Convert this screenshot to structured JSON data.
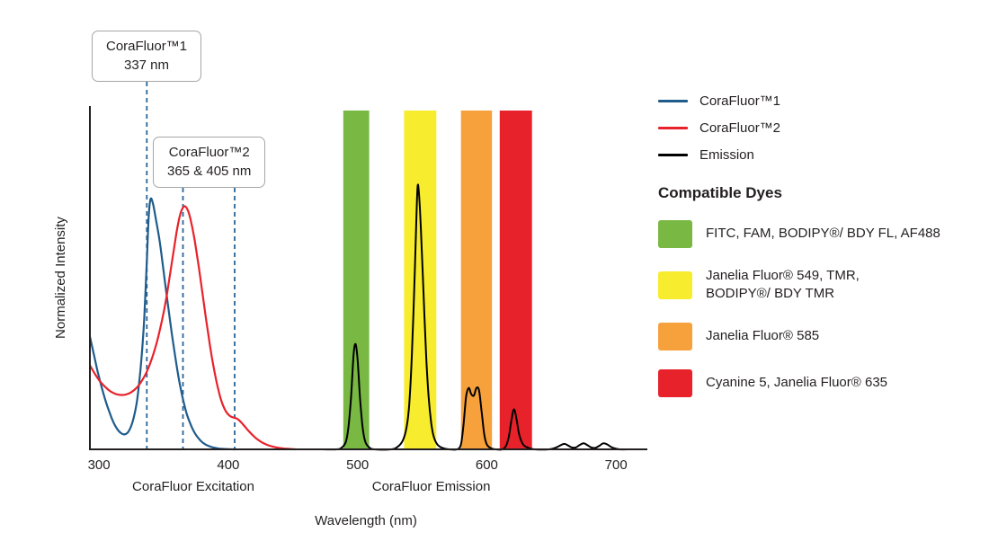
{
  "chart_data": {
    "type": "line",
    "xlabel": "Wavelength (nm)",
    "ylabel": "Normalized Intensity",
    "xlim": [
      293,
      720
    ],
    "ylim": [
      0,
      1.37
    ],
    "xticks": [
      300,
      400,
      500,
      600,
      700
    ],
    "grid": false,
    "legend_position": "right",
    "dashed_line_color": "#2a6496",
    "axis_captions": [
      {
        "label": "CoraFluor Excitation",
        "x_nm": 373
      },
      {
        "label": "CoraFluor Emission",
        "x_nm": 557
      }
    ],
    "annotations": [
      {
        "title": "CoraFluor™1",
        "value": "337 nm",
        "anchors_nm": [
          337
        ]
      },
      {
        "title": "CoraFluor™2",
        "value": "365 & 405 nm",
        "anchors_nm": [
          365,
          405
        ]
      }
    ],
    "bands": [
      {
        "id": "band-fitc",
        "x1": 489,
        "x2": 509,
        "color": "#78b843"
      },
      {
        "id": "band-jf549",
        "x1": 536,
        "x2": 561,
        "color": "#f8ec2e"
      },
      {
        "id": "band-jf585",
        "x1": 580,
        "x2": 604,
        "color": "#f6a13c"
      },
      {
        "id": "band-cy5",
        "x1": 610,
        "x2": 635,
        "color": "#e8222b"
      }
    ],
    "series": [
      {
        "id": "corafluor1-excitation",
        "name": "CoraFluor™1",
        "color": "#1f5c8c",
        "points": [
          [
            293,
            0.45
          ],
          [
            296,
            0.38
          ],
          [
            299,
            0.31
          ],
          [
            302,
            0.25
          ],
          [
            305,
            0.195
          ],
          [
            308,
            0.15
          ],
          [
            311,
            0.11
          ],
          [
            314,
            0.082
          ],
          [
            317,
            0.065
          ],
          [
            320,
            0.06
          ],
          [
            323,
            0.072
          ],
          [
            326,
            0.11
          ],
          [
            329,
            0.18
          ],
          [
            331,
            0.26
          ],
          [
            333,
            0.37
          ],
          [
            335,
            0.52
          ],
          [
            337,
            0.75
          ],
          [
            338.5,
            0.93
          ],
          [
            340,
            1.0
          ],
          [
            342,
            0.975
          ],
          [
            344,
            0.92
          ],
          [
            347,
            0.83
          ],
          [
            350,
            0.71
          ],
          [
            353,
            0.59
          ],
          [
            356,
            0.475
          ],
          [
            359,
            0.37
          ],
          [
            362,
            0.275
          ],
          [
            365,
            0.2
          ],
          [
            368,
            0.14
          ],
          [
            371,
            0.098
          ],
          [
            374,
            0.066
          ],
          [
            377,
            0.044
          ],
          [
            380,
            0.028
          ],
          [
            384,
            0.015
          ],
          [
            388,
            0.008
          ],
          [
            393,
            0.003
          ],
          [
            399,
            0.001
          ],
          [
            406,
            0
          ]
        ]
      },
      {
        "id": "corafluor2-excitation",
        "name": "CoraFluor™2",
        "color": "#e8222b",
        "points": [
          [
            293,
            0.335
          ],
          [
            297,
            0.3
          ],
          [
            301,
            0.27
          ],
          [
            305,
            0.248
          ],
          [
            309,
            0.231
          ],
          [
            313,
            0.221
          ],
          [
            317,
            0.217
          ],
          [
            321,
            0.219
          ],
          [
            325,
            0.228
          ],
          [
            329,
            0.245
          ],
          [
            333,
            0.272
          ],
          [
            337,
            0.31
          ],
          [
            341,
            0.363
          ],
          [
            345,
            0.432
          ],
          [
            349,
            0.52
          ],
          [
            352,
            0.6
          ],
          [
            355,
            0.7
          ],
          [
            358,
            0.8
          ],
          [
            360,
            0.865
          ],
          [
            362,
            0.92
          ],
          [
            364,
            0.955
          ],
          [
            366,
            0.97
          ],
          [
            368,
            0.962
          ],
          [
            370,
            0.935
          ],
          [
            372,
            0.89
          ],
          [
            374,
            0.835
          ],
          [
            376,
            0.77
          ],
          [
            378,
            0.7
          ],
          [
            380,
            0.625
          ],
          [
            382,
            0.55
          ],
          [
            384,
            0.478
          ],
          [
            386,
            0.41
          ],
          [
            388,
            0.348
          ],
          [
            390,
            0.293
          ],
          [
            392,
            0.245
          ],
          [
            394,
            0.205
          ],
          [
            396,
            0.175
          ],
          [
            398,
            0.153
          ],
          [
            400,
            0.139
          ],
          [
            402,
            0.131
          ],
          [
            404,
            0.127
          ],
          [
            406,
            0.124
          ],
          [
            408,
            0.118
          ],
          [
            410,
            0.108
          ],
          [
            413,
            0.09
          ],
          [
            416,
            0.072
          ],
          [
            419,
            0.056
          ],
          [
            422,
            0.042
          ],
          [
            426,
            0.028
          ],
          [
            430,
            0.018
          ],
          [
            435,
            0.01
          ],
          [
            440,
            0.005
          ],
          [
            446,
            0.002
          ],
          [
            452,
            0
          ]
        ]
      },
      {
        "id": "emission",
        "name": "Emission",
        "color": "#000000",
        "points": [
          [
            470,
            0
          ],
          [
            484,
            0
          ],
          [
            488,
            0.008
          ],
          [
            491,
            0.03
          ],
          [
            493,
            0.09
          ],
          [
            495,
            0.21
          ],
          [
            497,
            0.38
          ],
          [
            498.5,
            0.42
          ],
          [
            500,
            0.36
          ],
          [
            502,
            0.2
          ],
          [
            504,
            0.085
          ],
          [
            506,
            0.03
          ],
          [
            509,
            0.008
          ],
          [
            513,
            0
          ],
          [
            526,
            0
          ],
          [
            531,
            0.01
          ],
          [
            535,
            0.035
          ],
          [
            538,
            0.09
          ],
          [
            540,
            0.18
          ],
          [
            542,
            0.37
          ],
          [
            544,
            0.66
          ],
          [
            545.5,
            0.92
          ],
          [
            546.5,
            1.05
          ],
          [
            547.5,
            1.02
          ],
          [
            549,
            0.88
          ],
          [
            551,
            0.63
          ],
          [
            553,
            0.38
          ],
          [
            555,
            0.21
          ],
          [
            557,
            0.105
          ],
          [
            559,
            0.05
          ],
          [
            562,
            0.018
          ],
          [
            566,
            0.005
          ],
          [
            571,
            0
          ],
          [
            577,
            0
          ],
          [
            580,
            0.02
          ],
          [
            582,
            0.1
          ],
          [
            584,
            0.21
          ],
          [
            586,
            0.245
          ],
          [
            588,
            0.22
          ],
          [
            590,
            0.215
          ],
          [
            592,
            0.245
          ],
          [
            594,
            0.235
          ],
          [
            596,
            0.15
          ],
          [
            598,
            0.06
          ],
          [
            600,
            0.02
          ],
          [
            603,
            0.005
          ],
          [
            607,
            0
          ],
          [
            612,
            0
          ],
          [
            615,
            0.015
          ],
          [
            617,
            0.05
          ],
          [
            619,
            0.115
          ],
          [
            621,
            0.16
          ],
          [
            623,
            0.12
          ],
          [
            625,
            0.06
          ],
          [
            628,
            0.02
          ],
          [
            632,
            0.006
          ],
          [
            637,
            0
          ],
          [
            648,
            0
          ],
          [
            653,
            0.006
          ],
          [
            657,
            0.016
          ],
          [
            660,
            0.022
          ],
          [
            663,
            0.015
          ],
          [
            666,
            0.007
          ],
          [
            669,
            0.008
          ],
          [
            672,
            0.018
          ],
          [
            675,
            0.024
          ],
          [
            678,
            0.016
          ],
          [
            681,
            0.007
          ],
          [
            684,
            0.006
          ],
          [
            687,
            0.014
          ],
          [
            690,
            0.024
          ],
          [
            693,
            0.02
          ],
          [
            696,
            0.01
          ],
          [
            699,
            0.004
          ],
          [
            703,
            0
          ],
          [
            710,
            0
          ]
        ]
      }
    ]
  },
  "compatible_dyes": {
    "heading": "Compatible Dyes",
    "items": [
      {
        "label": "FITC, FAM, BODIPY®/ BDY FL, AF488",
        "color": "#78b843"
      },
      {
        "label": "Janelia Fluor® 549, TMR,\nBODIPY®/ BDY TMR",
        "color": "#f8ec2e"
      },
      {
        "label": "Janelia Fluor® 585",
        "color": "#f6a13c"
      },
      {
        "label": "Cyanine 5, Janelia Fluor® 635",
        "color": "#e8222b"
      }
    ]
  }
}
